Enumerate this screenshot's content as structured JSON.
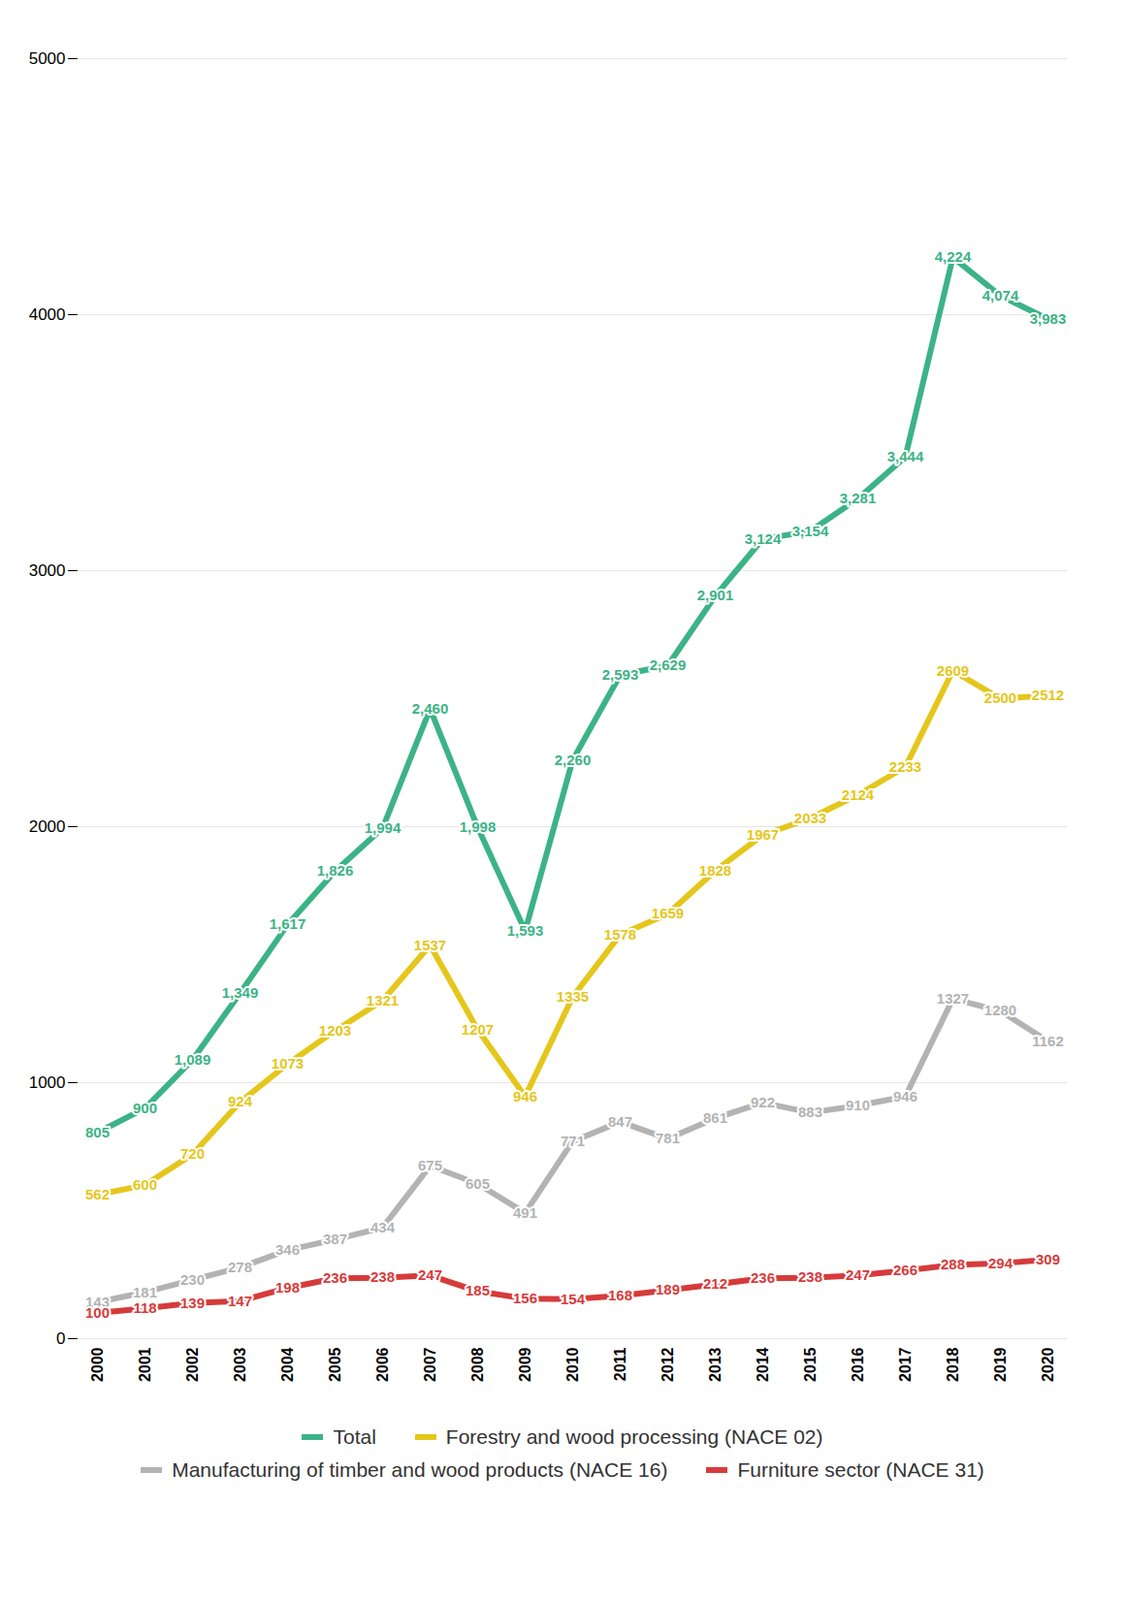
{
  "chart_data": {
    "type": "line",
    "categories": [
      "2000",
      "2001",
      "2002",
      "2003",
      "2004",
      "2005",
      "2006",
      "2007",
      "2008",
      "2009",
      "2010",
      "2011",
      "2012",
      "2013",
      "2014",
      "2015",
      "2016",
      "2017",
      "2018",
      "2019",
      "2020"
    ],
    "ylim": [
      0,
      5000
    ],
    "yticks": [
      0,
      1000,
      2000,
      3000,
      4000,
      5000
    ],
    "grid": true,
    "data_labels": true,
    "legend": "bottom",
    "series": [
      {
        "name": "Total",
        "color": "#3cb386",
        "values": [
          805,
          900,
          1089,
          1349,
          1617,
          1826,
          1994,
          2460,
          1998,
          1593,
          2260,
          2593,
          2629,
          2901,
          3124,
          3154,
          3281,
          3444,
          4224,
          4074,
          3983
        ],
        "value_labels": [
          "805",
          "900",
          "1,089",
          "1,349",
          "1,617",
          "1,826",
          "1,994",
          "2,460",
          "1,998",
          "1,593",
          "2,260",
          "2,593",
          "2,629",
          "2,901",
          "3,124",
          "3,154",
          "3,281",
          "3,444",
          "4,224",
          "4,074",
          "3,983"
        ]
      },
      {
        "name": "Forestry and wood processing (NACE 02)",
        "color": "#e5c61a",
        "values": [
          562,
          600,
          720,
          924,
          1073,
          1203,
          1321,
          1537,
          1207,
          946,
          1335,
          1578,
          1659,
          1828,
          1967,
          2033,
          2124,
          2233,
          2609,
          2500,
          2512
        ]
      },
      {
        "name": "Manufacturing of timber and wood products (NACE 16)",
        "color": "#b3b3b3",
        "values": [
          143,
          181,
          230,
          278,
          346,
          387,
          434,
          675,
          605,
          491,
          771,
          847,
          781,
          861,
          922,
          883,
          910,
          946,
          1327,
          1280,
          1162
        ]
      },
      {
        "name": "Furniture sector (NACE 31)",
        "color": "#d63b3b",
        "values": [
          100,
          118,
          139,
          147,
          198,
          236,
          238,
          247,
          185,
          156,
          154,
          168,
          189,
          212,
          236,
          238,
          247,
          266,
          288,
          294,
          309
        ]
      }
    ]
  }
}
